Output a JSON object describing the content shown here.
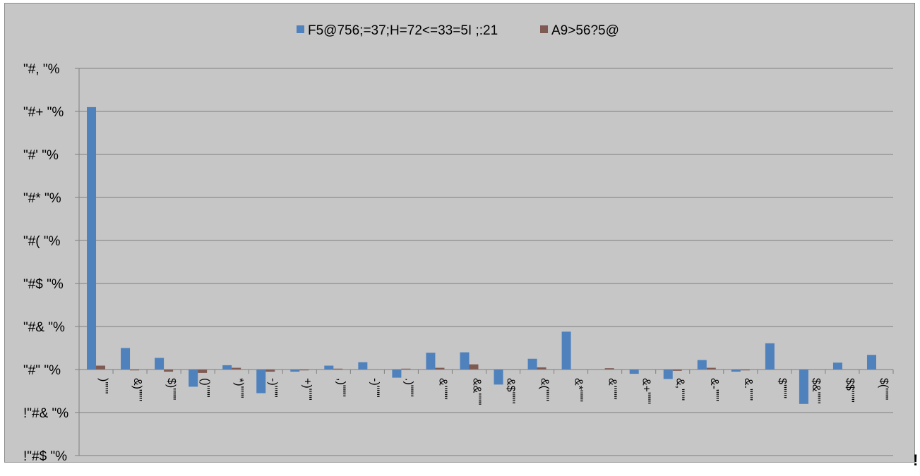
{
  "chart_data": {
    "type": "bar",
    "series": [
      {
        "name": "F5@756;=37;H=72<=33=5I ;:21",
        "color": "#4f81bd",
        "values": [
          0.61,
          0.05,
          0.027,
          -0.04,
          0.01,
          -0.055,
          -0.005,
          0.009,
          0.017,
          -0.019,
          0.039,
          0.04,
          -0.035,
          0.025,
          0.088,
          0,
          -0.01,
          -0.022,
          0.022,
          -0.005,
          0.061,
          -0.08,
          0.016,
          0.034
        ]
      },
      {
        "name": "A9>56?5@",
        "color": "#7f5a52",
        "values": [
          0.009,
          -0.002,
          -0.005,
          -0.008,
          0.004,
          -0.005,
          -0.002,
          0.002,
          0,
          0.002,
          0.004,
          0.012,
          0,
          0.005,
          0,
          0.003,
          0,
          -0.003,
          0.004,
          -0.002,
          0,
          0,
          0,
          0
        ]
      }
    ],
    "categories": [
      ")\"\"\"",
      "&)\"\"\"",
      "$)\"\"\"",
      "()\"\"\"",
      "*)\"\"\"",
      "-)\"\"\"",
      "+)\"\"\"",
      ",)\"\"\"",
      "-)\"\"\"",
      ".)\"\"\"",
      "&'\"\"\"",
      "&&\"\"\"",
      "&$\"\"\"",
      "&(\"\"\"",
      "&*\"\"\"",
      "&'\"\"\"",
      "&+\"\"\"",
      "&,\"\"\"",
      "&-\"\"\"",
      "&.\"\"\"",
      "$'\"\"\"",
      "$&\"\"\"",
      "$$\"\"\"",
      "$(\"\"\""
    ],
    "ylim": [
      -0.2,
      0.7
    ],
    "yticks": [
      {
        "value": 0.7,
        "label": "\"#, \"%"
      },
      {
        "value": 0.6,
        "label": "\"#+ \"%"
      },
      {
        "value": 0.5,
        "label": "\"#' \"%"
      },
      {
        "value": 0.4,
        "label": "\"#* \"%"
      },
      {
        "value": 0.3,
        "label": "\"#( \"%"
      },
      {
        "value": 0.2,
        "label": "\"#$ \"%"
      },
      {
        "value": 0.1,
        "label": "\"#& \"%"
      },
      {
        "value": 0,
        "label": "\"#\" \"%"
      },
      {
        "value": -0.1,
        "label": "!\"#& \"%"
      },
      {
        "value": -0.2,
        "label": "!\"#$ \"%"
      }
    ],
    "grid": true,
    "legend_position": "top-center",
    "stray_mark": "!"
  }
}
